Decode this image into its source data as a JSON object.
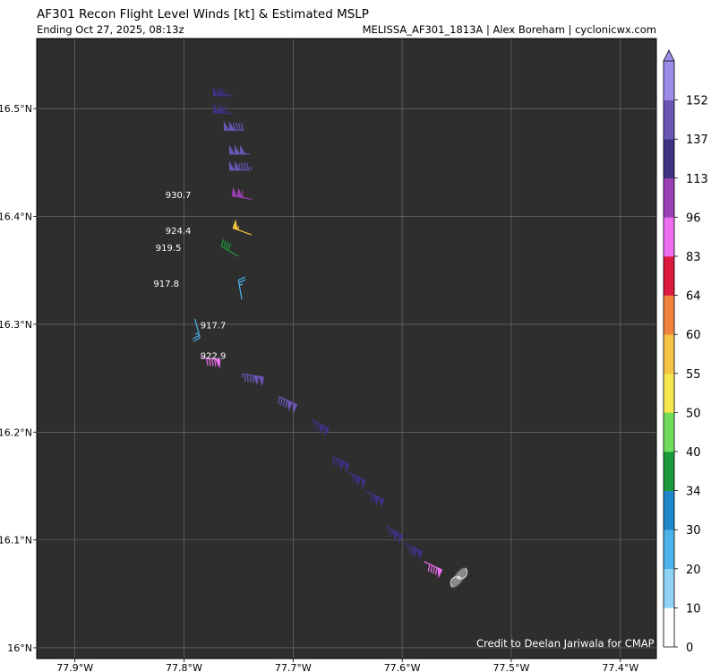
{
  "header": {
    "title": "AF301 Recon Flight Level Winds [kt] & Estimated MSLP",
    "subtitle": "Ending Oct 27, 2025, 08:13z",
    "right_title": "MELISSA_AF301_1813A | Alex Boreham | cyclonicwx.com"
  },
  "credit": "Credit to Deelan Jariwala for CMAP",
  "map": {
    "background_color": "#2e2e2e",
    "grid_color": "#777777",
    "lon_range": [
      -77.935,
      -77.367
    ],
    "lat_range": [
      15.99,
      16.565
    ],
    "lon_ticks": [
      {
        "value": -77.9,
        "label": "77.9°W"
      },
      {
        "value": -77.8,
        "label": "77.8°W"
      },
      {
        "value": -77.7,
        "label": "77.7°W"
      },
      {
        "value": -77.6,
        "label": "77.6°W"
      },
      {
        "value": -77.5,
        "label": "77.5°W"
      },
      {
        "value": -77.4,
        "label": "77.4°W"
      }
    ],
    "lat_ticks": [
      {
        "value": 16.0,
        "label": "16°N"
      },
      {
        "value": 16.1,
        "label": "16.1°N"
      },
      {
        "value": 16.2,
        "label": "16.2°N"
      },
      {
        "value": 16.3,
        "label": "16.3°N"
      },
      {
        "value": 16.4,
        "label": "16.4°N"
      },
      {
        "value": 16.5,
        "label": "16.5°N"
      }
    ]
  },
  "colorbar": {
    "ticks": [
      "0",
      "10",
      "20",
      "30",
      "34",
      "40",
      "50",
      "55",
      "60",
      "64",
      "83",
      "96",
      "113",
      "137",
      "152"
    ],
    "colors": [
      "#ffffff",
      "#8fd3f5",
      "#4ab3ea",
      "#1f88c9",
      "#1b9a3b",
      "#6fdc5a",
      "#f7e64b",
      "#f5c445",
      "#f0833e",
      "#dc1a3e",
      "#ee6ef0",
      "#9a40b3",
      "#3f3182",
      "#6a55b5",
      "#9d8ce8"
    ]
  },
  "barbs": [
    {
      "lon": -77.755,
      "lat": 16.512,
      "speed": 115,
      "dir": 270
    },
    {
      "lon": -77.755,
      "lat": 16.495,
      "speed": 120,
      "dir": 275
    },
    {
      "lon": -77.745,
      "lat": 16.48,
      "speed": 140,
      "dir": 270
    },
    {
      "lon": -77.74,
      "lat": 16.458,
      "speed": 150,
      "dir": 270
    },
    {
      "lon": -77.74,
      "lat": 16.443,
      "speed": 145,
      "dir": 270
    },
    {
      "lon": -77.738,
      "lat": 16.416,
      "speed": 112,
      "dir": 280
    },
    {
      "lon": -77.738,
      "lat": 16.383,
      "speed": 57,
      "dir": 290
    },
    {
      "lon": -77.75,
      "lat": 16.363,
      "speed": 39,
      "dir": 300
    },
    {
      "lon": -77.747,
      "lat": 16.323,
      "speed": 25,
      "dir": 350
    },
    {
      "lon": -77.79,
      "lat": 16.305,
      "speed": 25,
      "dir": 165
    },
    {
      "lon": -77.785,
      "lat": 16.269,
      "speed": 92,
      "dir": 95
    },
    {
      "lon": -77.745,
      "lat": 16.254,
      "speed": 145,
      "dir": 100
    },
    {
      "lon": -77.713,
      "lat": 16.233,
      "speed": 140,
      "dir": 115
    },
    {
      "lon": -77.683,
      "lat": 16.212,
      "speed": 125,
      "dir": 120
    },
    {
      "lon": -77.665,
      "lat": 16.178,
      "speed": 128,
      "dir": 115
    },
    {
      "lon": -77.65,
      "lat": 16.163,
      "speed": 122,
      "dir": 115
    },
    {
      "lon": -77.633,
      "lat": 16.145,
      "speed": 120,
      "dir": 115
    },
    {
      "lon": -77.615,
      "lat": 16.113,
      "speed": 125,
      "dir": 120
    },
    {
      "lon": -77.598,
      "lat": 16.097,
      "speed": 122,
      "dir": 115
    },
    {
      "lon": -77.58,
      "lat": 16.08,
      "speed": 92,
      "dir": 115
    }
  ],
  "pressures": [
    {
      "lon": -77.817,
      "lat": 16.417,
      "label": "930.7"
    },
    {
      "lon": -77.817,
      "lat": 16.384,
      "label": "924.4"
    },
    {
      "lon": -77.826,
      "lat": 16.368,
      "label": "919.5"
    },
    {
      "lon": -77.828,
      "lat": 16.335,
      "label": "917.8"
    },
    {
      "lon": -77.785,
      "lat": 16.296,
      "label": "917.7"
    },
    {
      "lon": -77.785,
      "lat": 16.268,
      "label": "922.9"
    }
  ],
  "storm_icon_name": "hurricane-icon"
}
